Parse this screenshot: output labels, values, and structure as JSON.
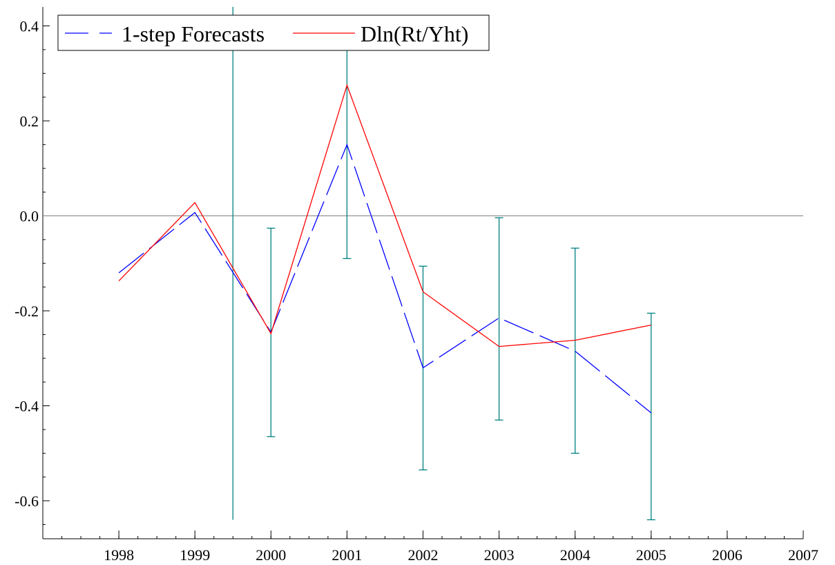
{
  "chart_data": {
    "type": "line",
    "title": "",
    "xlabel": "",
    "ylabel": "",
    "xlim": [
      1997,
      2007
    ],
    "ylim": [
      -0.68,
      0.44
    ],
    "x_ticks": [
      {
        "value": 1998,
        "label": "1998"
      },
      {
        "value": 1999,
        "label": "1999"
      },
      {
        "value": 2000,
        "label": "2000"
      },
      {
        "value": 2001,
        "label": "2001"
      },
      {
        "value": 2002,
        "label": "2002"
      },
      {
        "value": 2003,
        "label": "2003"
      },
      {
        "value": 2004,
        "label": "2004"
      },
      {
        "value": 2005,
        "label": "2005"
      },
      {
        "value": 2006,
        "label": "2006"
      },
      {
        "value": 2007,
        "label": "2007"
      }
    ],
    "y_ticks": [
      {
        "value": 0.4,
        "label": "0.4"
      },
      {
        "value": 0.2,
        "label": "0.2"
      },
      {
        "value": 0.0,
        "label": "0.0"
      },
      {
        "value": -0.2,
        "label": "-0.2"
      },
      {
        "value": -0.4,
        "label": "-0.4"
      },
      {
        "value": -0.6,
        "label": "-0.6"
      }
    ],
    "y_minor_step": 0.05,
    "x_minor_step": 0.25,
    "reference_line": 0.0,
    "legend_position": "top-left",
    "grid": false,
    "series": [
      {
        "name": "1-step Forecasts",
        "style": "dashed",
        "color": "#0000ff",
        "x": [
          1998,
          1999,
          2000,
          2001,
          2002,
          2003,
          2004,
          2005
        ],
        "y": [
          -0.12,
          0.007,
          -0.245,
          0.15,
          -0.32,
          -0.215,
          -0.285,
          -0.415
        ]
      },
      {
        "name": "Dln(Rt/Yht)",
        "style": "solid",
        "color": "#ff0000",
        "x": [
          1998,
          1999,
          2000,
          2001,
          2002,
          2003,
          2004,
          2005
        ],
        "y": [
          -0.137,
          0.028,
          -0.248,
          0.275,
          -0.16,
          -0.275,
          -0.262,
          -0.23
        ]
      }
    ],
    "error_bars": {
      "color": "#008080",
      "items": [
        {
          "x": 1999.5,
          "low": -0.64,
          "high": 0.44,
          "caps": false
        },
        {
          "x": 2000,
          "low": -0.465,
          "high": -0.026,
          "caps": true
        },
        {
          "x": 2001,
          "low": -0.09,
          "high": 0.4,
          "caps": true
        },
        {
          "x": 2002,
          "low": -0.535,
          "high": -0.106,
          "caps": true
        },
        {
          "x": 2003,
          "low": -0.43,
          "high": -0.004,
          "caps": true
        },
        {
          "x": 2004,
          "low": -0.5,
          "high": -0.068,
          "caps": true
        },
        {
          "x": 2005,
          "low": -0.64,
          "high": -0.205,
          "caps": true
        }
      ]
    }
  }
}
